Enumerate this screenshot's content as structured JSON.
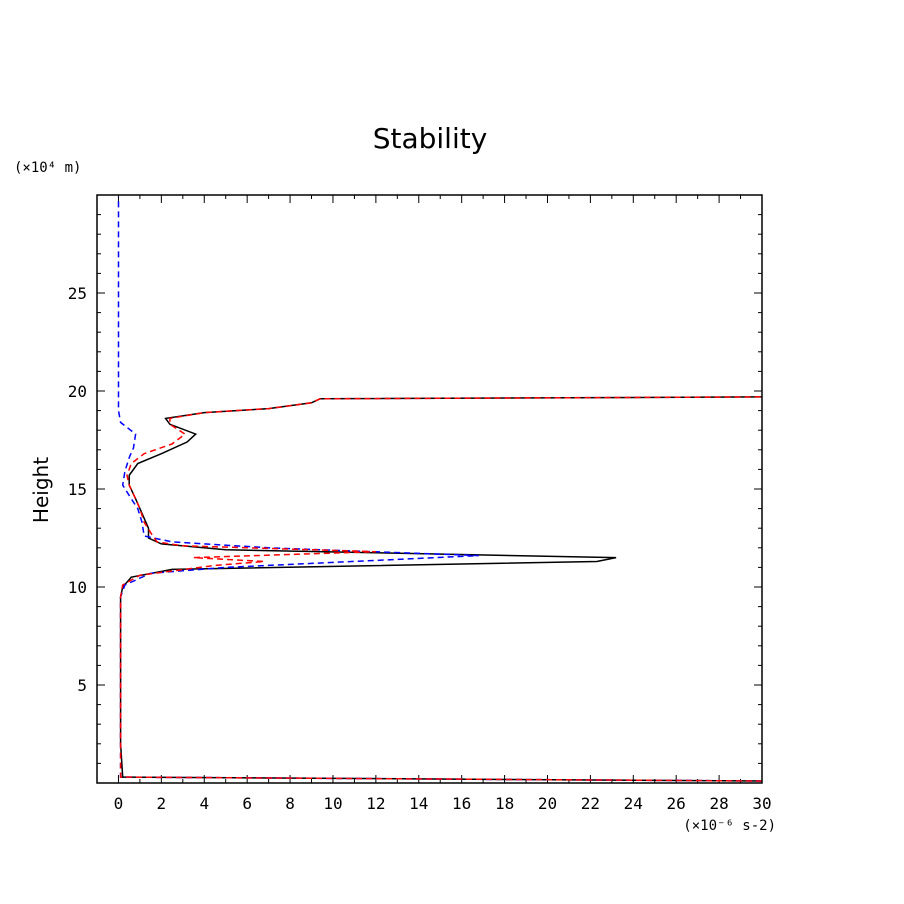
{
  "chart_data": {
    "type": "line",
    "title": "Stability",
    "xlabel": "",
    "ylabel": "Height",
    "x_unit": "(×10⁻⁶ s-2)",
    "y_unit": "(×10⁴ m)",
    "xlim": [
      -1,
      30
    ],
    "ylim": [
      0,
      30
    ],
    "x_major_ticks": [
      0,
      2,
      4,
      6,
      8,
      10,
      12,
      14,
      16,
      18,
      20,
      22,
      24,
      26,
      28,
      30
    ],
    "x_tick_labels": [
      "0",
      "2",
      "4",
      "6",
      "8",
      "10",
      "12",
      "14",
      "16",
      "18",
      "20",
      "22",
      "24",
      "26",
      "28",
      "30"
    ],
    "y_major_ticks": [
      5,
      10,
      15,
      20,
      25
    ],
    "y_tick_labels": [
      "5",
      "10",
      "15",
      "20",
      "25"
    ],
    "grid": false,
    "legend": "none",
    "series": [
      {
        "color": "#000000",
        "style": "solid",
        "points": [
          [
            30,
            0.1
          ],
          [
            0.2,
            0.3
          ],
          [
            0.1,
            2
          ],
          [
            0.1,
            5
          ],
          [
            0.1,
            9.5
          ],
          [
            0.2,
            10.0
          ],
          [
            0.6,
            10.5
          ],
          [
            2.5,
            10.9
          ],
          [
            22.3,
            11.3
          ],
          [
            23.2,
            11.5
          ],
          [
            5,
            11.9
          ],
          [
            2,
            12.2
          ],
          [
            1.4,
            12.5
          ],
          [
            1.4,
            13.0
          ],
          [
            1.2,
            13.5
          ],
          [
            1.0,
            14.0
          ],
          [
            0.8,
            14.5
          ],
          [
            0.5,
            15.2
          ],
          [
            0.5,
            15.7
          ],
          [
            0.9,
            16.3
          ],
          [
            2.0,
            16.8
          ],
          [
            3.2,
            17.4
          ],
          [
            3.6,
            17.8
          ],
          [
            2.4,
            18.3
          ],
          [
            2.2,
            18.6
          ],
          [
            4.0,
            18.9
          ],
          [
            7.0,
            19.1
          ],
          [
            9.0,
            19.4
          ],
          [
            9.4,
            19.6
          ],
          [
            30,
            19.7
          ]
        ]
      },
      {
        "color": "#0000ff",
        "style": "dashed",
        "points": [
          [
            30,
            0.1
          ],
          [
            0.1,
            0.3
          ],
          [
            0.1,
            5
          ],
          [
            0.1,
            9.5
          ],
          [
            0.3,
            10.1
          ],
          [
            1.5,
            10.7
          ],
          [
            5.0,
            11.0
          ],
          [
            16.8,
            11.6
          ],
          [
            7.0,
            12.0
          ],
          [
            2.5,
            12.3
          ],
          [
            1.2,
            12.6
          ],
          [
            1.1,
            13.3
          ],
          [
            0.9,
            14.0
          ],
          [
            0.6,
            14.5
          ],
          [
            0.2,
            15.2
          ],
          [
            0.3,
            15.9
          ],
          [
            0.5,
            16.6
          ],
          [
            0.7,
            17.1
          ],
          [
            0.8,
            17.8
          ],
          [
            0.1,
            18.4
          ],
          [
            0,
            19
          ],
          [
            0,
            29.9
          ]
        ]
      },
      {
        "color": "#ff0000",
        "style": "dashed",
        "points": [
          [
            30,
            0.1
          ],
          [
            0.1,
            0.3
          ],
          [
            0.1,
            5
          ],
          [
            0.1,
            9.5
          ],
          [
            0.2,
            10.1
          ],
          [
            1.0,
            10.6
          ],
          [
            4.5,
            11.1
          ],
          [
            6.8,
            11.3
          ],
          [
            3.5,
            11.5
          ],
          [
            12.0,
            11.8
          ],
          [
            3.0,
            12.1
          ],
          [
            1.8,
            12.3
          ],
          [
            1.6,
            12.6
          ],
          [
            1.2,
            13.3
          ],
          [
            1.0,
            14.0
          ],
          [
            0.8,
            14.5
          ],
          [
            0.5,
            15.2
          ],
          [
            0.4,
            15.7
          ],
          [
            0.6,
            16.3
          ],
          [
            1.2,
            16.8
          ],
          [
            2.5,
            17.3
          ],
          [
            3.1,
            17.8
          ],
          [
            2.4,
            18.3
          ],
          [
            2.4,
            18.6
          ],
          [
            4.0,
            18.9
          ],
          [
            7.0,
            19.1
          ],
          [
            9.0,
            19.4
          ],
          [
            9.4,
            19.6
          ],
          [
            30,
            19.7
          ]
        ]
      }
    ]
  }
}
